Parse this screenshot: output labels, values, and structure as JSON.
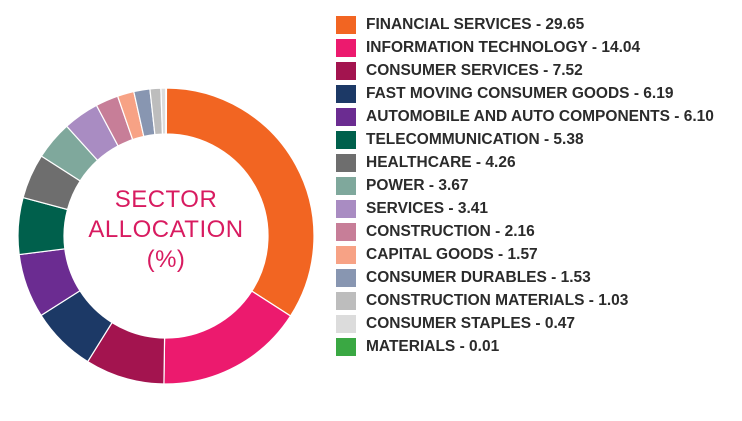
{
  "chart_data": {
    "type": "pie",
    "center_label": [
      "SECTOR",
      "ALLOCATION",
      "(%)"
    ],
    "legend_position": "right",
    "categories": [
      "FINANCIAL SERVICES",
      "INFORMATION TECHNOLOGY",
      "CONSUMER SERVICES",
      "FAST MOVING CONSUMER GOODS",
      "AUTOMOBILE AND AUTO COMPONENTS",
      "TELECOMMUNICATION",
      "HEALTHCARE",
      "POWER",
      "SERVICES",
      "CONSTRUCTION",
      "CAPITAL GOODS",
      "CONSUMER DURABLES",
      "CONSTRUCTION MATERIALS",
      "CONSUMER STAPLES",
      "MATERIALS"
    ],
    "values": [
      29.65,
      14.04,
      7.52,
      6.19,
      6.1,
      5.38,
      4.26,
      3.67,
      3.41,
      2.16,
      1.57,
      1.53,
      1.03,
      0.47,
      0.01
    ],
    "value_labels": [
      "29.65",
      "14.04",
      "7.52",
      "6.19",
      "6.10",
      "5.38",
      "4.26",
      "3.67",
      "3.41",
      "2.16",
      "1.57",
      "1.53",
      "1.03",
      "0.47",
      "0.01"
    ],
    "colors": [
      "#f26522",
      "#ec1a6e",
      "#a3144f",
      "#1c3966",
      "#6b2c91",
      "#00604c",
      "#6e6e6e",
      "#7fa89c",
      "#a98cc2",
      "#c77e98",
      "#f7a285",
      "#8896b1",
      "#bdbdbd",
      "#dcdcdc",
      "#3aa843"
    ]
  }
}
